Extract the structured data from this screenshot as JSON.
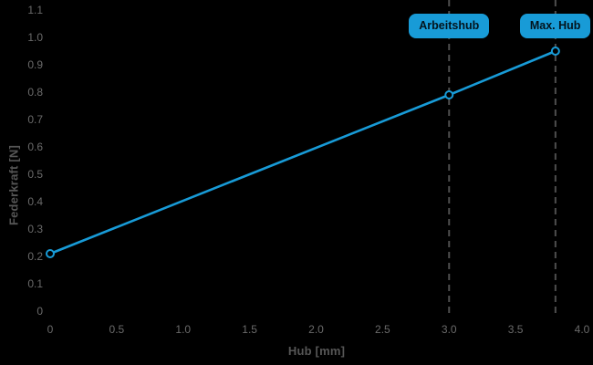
{
  "chart_data": {
    "type": "line",
    "title": "",
    "xlabel": "Hub [mm]",
    "ylabel": "Federkraft [N]",
    "xlim": [
      0,
      4.0
    ],
    "ylim": [
      0,
      1.1
    ],
    "grid": false,
    "legend_position": "none",
    "x_ticks": [
      0,
      0.5,
      1.0,
      1.5,
      2.0,
      2.5,
      3.0,
      3.5,
      4.0
    ],
    "x_tick_labels": [
      "0",
      "0.5",
      "1.0",
      "1.5",
      "2.0",
      "2.5",
      "3.0",
      "3.5",
      "4.0"
    ],
    "y_ticks": [
      0,
      0.1,
      0.2,
      0.3,
      0.4,
      0.5,
      0.6,
      0.7,
      0.8,
      0.9,
      1.0,
      1.1
    ],
    "y_tick_labels": [
      "0",
      "0.1",
      "0.2",
      "0.3",
      "0.4",
      "0.5",
      "0.6",
      "0.7",
      "0.8",
      "0.9",
      "1.0",
      "1.1"
    ],
    "series": [
      {
        "name": "Federkraft",
        "x": [
          0,
          3.0,
          3.8
        ],
        "y": [
          0.21,
          0.79,
          0.95
        ]
      }
    ],
    "annotations": [
      {
        "label": "Arbeitshub",
        "x": 3.0
      },
      {
        "label": "Max. Hub",
        "x": 3.8
      }
    ],
    "colors": {
      "line": "#189BD7",
      "marker_fill": "#000000",
      "badge_bg": "#189BD7",
      "badge_text": "#03141D",
      "tick_text": "#6a6a6a",
      "axis_title_text": "#565656",
      "dashed_line": "#4e4e4e",
      "background": "#000000"
    }
  }
}
